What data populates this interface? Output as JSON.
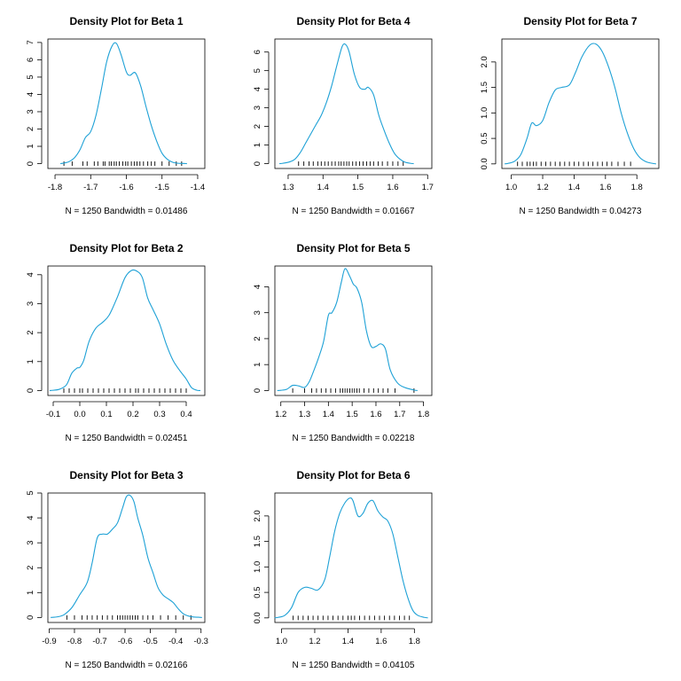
{
  "colors": {
    "curve": "#1ea1d6",
    "axis": "#000000",
    "background": "#ffffff"
  },
  "chart_data": [
    {
      "type": "density",
      "title": "Density Plot for Beta 1",
      "subtitle": "N = 1250   Bandwidth = 0.01486",
      "xlim": [
        -1.82,
        -1.38
      ],
      "ylim": [
        -0.28,
        7.2
      ],
      "xticks": [
        -1.8,
        -1.7,
        -1.6,
        -1.5,
        -1.4
      ],
      "xtick_labels": [
        "-1.8",
        "-1.7",
        "-1.6",
        "-1.5",
        "-1.4"
      ],
      "yticks": [
        0,
        1,
        2,
        3,
        4,
        5,
        6,
        7
      ],
      "ytick_labels": [
        "0",
        "1",
        "2",
        "3",
        "4",
        "5",
        "6",
        "7"
      ],
      "x": [
        -1.775,
        -1.76,
        -1.745,
        -1.73,
        -1.715,
        -1.7,
        -1.685,
        -1.67,
        -1.655,
        -1.64,
        -1.628,
        -1.615,
        -1.6,
        -1.59,
        -1.575,
        -1.56,
        -1.545,
        -1.53,
        -1.515,
        -1.5,
        -1.485,
        -1.47,
        -1.455,
        -1.44
      ],
      "y": [
        0.03,
        0.12,
        0.35,
        0.8,
        1.5,
        1.85,
        2.8,
        4.3,
        5.9,
        6.8,
        6.95,
        6.3,
        5.3,
        5.1,
        5.25,
        4.5,
        3.3,
        2.2,
        1.3,
        0.6,
        0.25,
        0.08,
        0.02,
        0.01
      ],
      "rug": [
        -1.775,
        -1.752,
        -1.722,
        -1.71,
        -1.69,
        -1.68,
        -1.665,
        -1.66,
        -1.648,
        -1.642,
        -1.634,
        -1.628,
        -1.62,
        -1.61,
        -1.602,
        -1.596,
        -1.586,
        -1.578,
        -1.57,
        -1.562,
        -1.552,
        -1.54,
        -1.53,
        -1.52,
        -1.5,
        -1.48,
        -1.46,
        -1.445
      ]
    },
    {
      "type": "density",
      "title": "Density Plot for Beta 4",
      "subtitle": "N = 1250   Bandwidth = 0.01667",
      "xlim": [
        1.262,
        1.712
      ],
      "ylim": [
        -0.26,
        6.7
      ],
      "xticks": [
        1.3,
        1.4,
        1.5,
        1.6,
        1.7
      ],
      "xtick_labels": [
        "1.3",
        "1.4",
        "1.5",
        "1.6",
        "1.7"
      ],
      "yticks": [
        0,
        1,
        2,
        3,
        4,
        5,
        6
      ],
      "ytick_labels": [
        "0",
        "1",
        "2",
        "3",
        "4",
        "5",
        "6"
      ],
      "x": [
        1.285,
        1.305,
        1.32,
        1.335,
        1.35,
        1.365,
        1.38,
        1.395,
        1.41,
        1.425,
        1.44,
        1.455,
        1.465,
        1.475,
        1.49,
        1.505,
        1.52,
        1.53,
        1.545,
        1.56,
        1.575,
        1.59,
        1.605,
        1.62,
        1.635,
        1.65
      ],
      "y": [
        0.02,
        0.1,
        0.25,
        0.6,
        1.1,
        1.6,
        2.1,
        2.6,
        3.3,
        4.2,
        5.3,
        6.3,
        6.4,
        6.0,
        4.8,
        4.1,
        4.0,
        4.1,
        3.7,
        2.6,
        1.8,
        1.1,
        0.55,
        0.25,
        0.08,
        0.02
      ],
      "rug": [
        1.33,
        1.345,
        1.36,
        1.372,
        1.385,
        1.395,
        1.405,
        1.415,
        1.425,
        1.435,
        1.445,
        1.452,
        1.46,
        1.468,
        1.475,
        1.485,
        1.495,
        1.505,
        1.515,
        1.525,
        1.535,
        1.545,
        1.558,
        1.57,
        1.585,
        1.6,
        1.615,
        1.63
      ]
    },
    {
      "type": "density",
      "title": "Density Plot for Beta 7",
      "subtitle": "N = 1250   Bandwidth = 0.04273",
      "xlim": [
        0.94,
        1.94
      ],
      "ylim": [
        -0.09,
        2.45
      ],
      "xticks": [
        1.0,
        1.2,
        1.4,
        1.6,
        1.8
      ],
      "xtick_labels": [
        "1.0",
        "1.2",
        "1.4",
        "1.6",
        "1.8"
      ],
      "yticks": [
        0,
        0.5,
        1.0,
        1.5,
        2.0
      ],
      "ytick_labels": [
        "0.0",
        "0.5",
        "1.0",
        "1.5",
        "2.0"
      ],
      "x": [
        0.98,
        1.02,
        1.06,
        1.1,
        1.13,
        1.16,
        1.2,
        1.24,
        1.28,
        1.32,
        1.37,
        1.41,
        1.45,
        1.5,
        1.54,
        1.58,
        1.62,
        1.66,
        1.7,
        1.74,
        1.78,
        1.82,
        1.86,
        1.9
      ],
      "y": [
        0.01,
        0.05,
        0.18,
        0.5,
        0.8,
        0.75,
        0.85,
        1.2,
        1.45,
        1.5,
        1.55,
        1.8,
        2.1,
        2.33,
        2.35,
        2.2,
        1.9,
        1.5,
        1.0,
        0.6,
        0.3,
        0.12,
        0.04,
        0.01
      ],
      "rug": [
        1.04,
        1.07,
        1.1,
        1.12,
        1.14,
        1.16,
        1.19,
        1.22,
        1.25,
        1.28,
        1.31,
        1.34,
        1.37,
        1.4,
        1.43,
        1.46,
        1.49,
        1.52,
        1.55,
        1.58,
        1.61,
        1.64,
        1.68,
        1.72,
        1.76
      ]
    },
    {
      "type": "density",
      "title": "Density Plot for Beta 2",
      "subtitle": "N = 1250   Bandwidth = 0.02451",
      "xlim": [
        -0.12,
        0.47
      ],
      "ylim": [
        -0.17,
        4.3
      ],
      "xticks": [
        -0.1,
        0.0,
        0.1,
        0.2,
        0.3,
        0.4
      ],
      "xtick_labels": [
        "-0.1",
        "0.0",
        "0.1",
        "0.2",
        "0.3",
        "0.4"
      ],
      "yticks": [
        0,
        1,
        2,
        3,
        4
      ],
      "ytick_labels": [
        "0",
        "1",
        "2",
        "3",
        "4"
      ],
      "x": [
        -0.1,
        -0.075,
        -0.05,
        -0.03,
        -0.01,
        0.0,
        0.015,
        0.035,
        0.06,
        0.085,
        0.11,
        0.14,
        0.17,
        0.195,
        0.215,
        0.235,
        0.255,
        0.275,
        0.3,
        0.325,
        0.35,
        0.375,
        0.4,
        0.42,
        0.44
      ],
      "y": [
        0.01,
        0.05,
        0.2,
        0.6,
        0.78,
        0.8,
        1.05,
        1.7,
        2.15,
        2.35,
        2.6,
        3.2,
        3.9,
        4.15,
        4.12,
        3.9,
        3.2,
        2.8,
        2.3,
        1.6,
        1.05,
        0.7,
        0.4,
        0.1,
        0.01
      ],
      "rug": [
        -0.06,
        -0.04,
        -0.02,
        0.0,
        0.01,
        0.03,
        0.05,
        0.07,
        0.09,
        0.11,
        0.13,
        0.15,
        0.17,
        0.19,
        0.21,
        0.22,
        0.24,
        0.26,
        0.28,
        0.3,
        0.32,
        0.34,
        0.36,
        0.38,
        0.4
      ]
    },
    {
      "type": "density",
      "title": "Density Plot for Beta 5",
      "subtitle": "N = 1250   Bandwidth = 0.02218",
      "xlim": [
        1.175,
        1.835
      ],
      "ylim": [
        -0.19,
        4.8
      ],
      "xticks": [
        1.2,
        1.3,
        1.4,
        1.5,
        1.6,
        1.7,
        1.8
      ],
      "xtick_labels": [
        "1.2",
        "1.3",
        "1.4",
        "1.5",
        "1.6",
        "1.7",
        "1.8"
      ],
      "yticks": [
        0,
        1,
        2,
        3,
        4
      ],
      "ytick_labels": [
        "0",
        "1",
        "2",
        "3",
        "4"
      ],
      "x": [
        1.2,
        1.225,
        1.25,
        1.275,
        1.3,
        1.32,
        1.34,
        1.36,
        1.38,
        1.4,
        1.415,
        1.435,
        1.455,
        1.47,
        1.49,
        1.505,
        1.52,
        1.54,
        1.56,
        1.58,
        1.6,
        1.62,
        1.64,
        1.66,
        1.69,
        1.72,
        1.76
      ],
      "y": [
        0.01,
        0.05,
        0.2,
        0.18,
        0.12,
        0.35,
        0.8,
        1.3,
        1.9,
        2.9,
        3.0,
        3.4,
        4.2,
        4.7,
        4.4,
        4.1,
        3.95,
        3.4,
        2.3,
        1.7,
        1.7,
        1.8,
        1.6,
        0.8,
        0.3,
        0.12,
        0.02
      ],
      "rug": [
        1.25,
        1.3,
        1.33,
        1.35,
        1.37,
        1.39,
        1.41,
        1.43,
        1.45,
        1.46,
        1.47,
        1.48,
        1.49,
        1.5,
        1.51,
        1.52,
        1.53,
        1.55,
        1.57,
        1.59,
        1.61,
        1.63,
        1.65,
        1.68,
        1.76
      ]
    },
    {
      "type": "density",
      "title": "Density Plot for Beta 3",
      "subtitle": "N = 1250   Bandwidth = 0.02166",
      "xlim": [
        -0.905,
        -0.285
      ],
      "ylim": [
        -0.2,
        5.0
      ],
      "xticks": [
        -0.9,
        -0.8,
        -0.7,
        -0.6,
        -0.5,
        -0.4,
        -0.3
      ],
      "xtick_labels": [
        "-0.9",
        "-0.8",
        "-0.7",
        "-0.6",
        "-0.5",
        "-0.4",
        "-0.3"
      ],
      "yticks": [
        0,
        1,
        2,
        3,
        4,
        5
      ],
      "ytick_labels": [
        "0",
        "1",
        "2",
        "3",
        "4",
        "5"
      ],
      "x": [
        -0.88,
        -0.86,
        -0.84,
        -0.81,
        -0.78,
        -0.75,
        -0.73,
        -0.71,
        -0.69,
        -0.67,
        -0.65,
        -0.63,
        -0.61,
        -0.595,
        -0.58,
        -0.565,
        -0.55,
        -0.53,
        -0.51,
        -0.49,
        -0.47,
        -0.45,
        -0.43,
        -0.41,
        -0.39,
        -0.37,
        -0.35,
        -0.33,
        -0.31
      ],
      "y": [
        0.01,
        0.04,
        0.12,
        0.4,
        0.9,
        1.4,
        2.2,
        3.2,
        3.35,
        3.35,
        3.55,
        3.8,
        4.4,
        4.85,
        4.9,
        4.65,
        4.0,
        3.3,
        2.4,
        1.8,
        1.2,
        0.9,
        0.75,
        0.6,
        0.35,
        0.15,
        0.06,
        0.02,
        0.01
      ],
      "rug": [
        -0.83,
        -0.8,
        -0.77,
        -0.75,
        -0.73,
        -0.71,
        -0.69,
        -0.67,
        -0.65,
        -0.63,
        -0.62,
        -0.61,
        -0.6,
        -0.59,
        -0.58,
        -0.57,
        -0.56,
        -0.55,
        -0.53,
        -0.51,
        -0.49,
        -0.46,
        -0.43,
        -0.4,
        -0.37,
        -0.34
      ]
    },
    {
      "type": "density",
      "title": "Density Plot for Beta 6",
      "subtitle": "N = 1250   Bandwidth = 0.04105",
      "xlim": [
        0.96,
        1.905
      ],
      "ylim": [
        -0.09,
        2.45
      ],
      "xticks": [
        1.0,
        1.2,
        1.4,
        1.6,
        1.8
      ],
      "xtick_labels": [
        "1.0",
        "1.2",
        "1.4",
        "1.6",
        "1.8"
      ],
      "yticks": [
        0,
        0.5,
        1.0,
        1.5,
        2.0
      ],
      "ytick_labels": [
        "0.0",
        "0.5",
        "1.0",
        "1.5",
        "2.0"
      ],
      "x": [
        0.98,
        1.02,
        1.06,
        1.1,
        1.14,
        1.18,
        1.22,
        1.26,
        1.29,
        1.32,
        1.35,
        1.38,
        1.41,
        1.43,
        1.46,
        1.49,
        1.52,
        1.55,
        1.58,
        1.61,
        1.64,
        1.67,
        1.7,
        1.73,
        1.76,
        1.79,
        1.82,
        1.86
      ],
      "y": [
        0.01,
        0.05,
        0.2,
        0.5,
        0.6,
        0.58,
        0.55,
        0.75,
        1.2,
        1.7,
        2.05,
        2.25,
        2.35,
        2.3,
        2.0,
        2.05,
        2.25,
        2.3,
        2.1,
        1.98,
        1.9,
        1.65,
        1.2,
        0.75,
        0.4,
        0.15,
        0.05,
        0.01
      ],
      "rug": [
        1.07,
        1.1,
        1.13,
        1.16,
        1.19,
        1.22,
        1.25,
        1.28,
        1.31,
        1.34,
        1.37,
        1.4,
        1.42,
        1.44,
        1.47,
        1.5,
        1.53,
        1.56,
        1.59,
        1.62,
        1.65,
        1.68,
        1.71,
        1.74,
        1.77
      ]
    }
  ]
}
